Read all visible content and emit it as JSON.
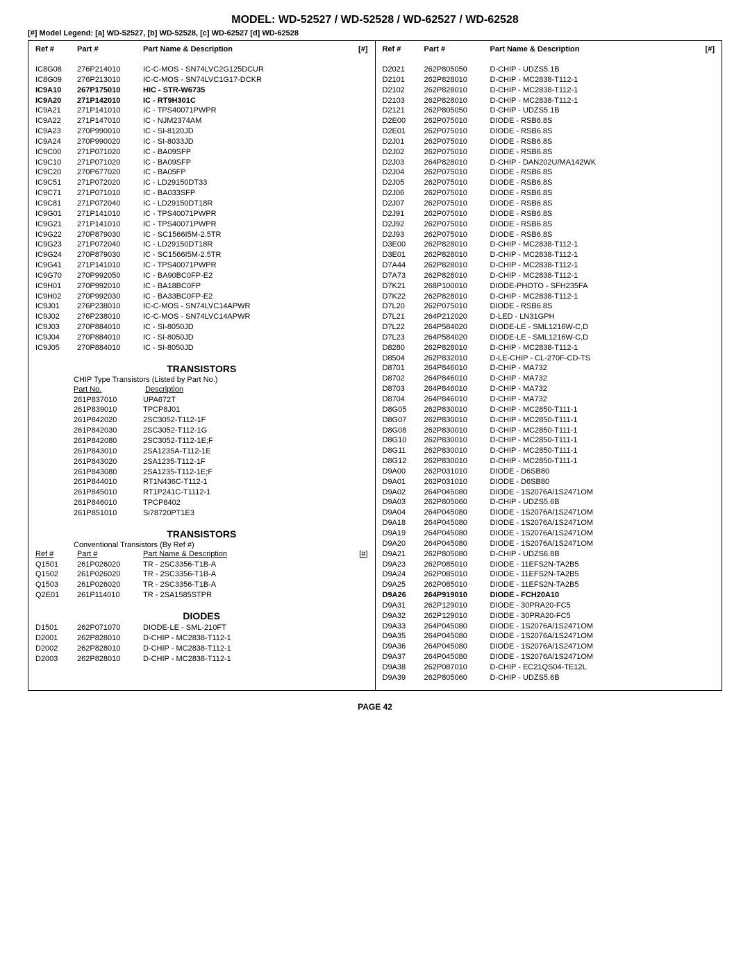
{
  "title": "MODEL: WD-52527 / WD-52528 / WD-62527 / WD-62528",
  "legend": "[#] Model Legend: [a]  WD-52527,  [b]  WD-52528,  [c]  WD-62527  [d]  WD-62528",
  "headers": {
    "ref": "Ref #",
    "part": "Part #",
    "desc": "Part Name & Description",
    "hash": "[#]"
  },
  "col1_rows": [
    {
      "ref": "IC8G08",
      "part": "276P214010",
      "desc": "IC-C-MOS -  SN74LVC2G125DCUR"
    },
    {
      "ref": "IC8G09",
      "part": "276P213010",
      "desc": "IC-C-MOS -  SN74LVC1G17-DCKR"
    },
    {
      "ref": "IC9A10",
      "part": "267P175010",
      "desc": "HIC -  STR-W6735",
      "bold": true
    },
    {
      "ref": "IC9A20",
      "part": "271P142010",
      "desc": "IC -   RT9H301C",
      "bold": true
    },
    {
      "ref": "IC9A21",
      "part": "271P141010",
      "desc": "IC - TPS40071PWPR"
    },
    {
      "ref": "IC9A22",
      "part": "271P147010",
      "desc": "IC - NJM2374AM"
    },
    {
      "ref": "IC9A23",
      "part": "270P990010",
      "desc": "IC -  SI-8120JD"
    },
    {
      "ref": "IC9A24",
      "part": "270P990020",
      "desc": "IC -  SI-8033JD"
    },
    {
      "ref": "IC9C00",
      "part": "271P071020",
      "desc": "IC - BA09SFP"
    },
    {
      "ref": "IC9C10",
      "part": "271P071020",
      "desc": "IC - BA09SFP"
    },
    {
      "ref": "IC9C20",
      "part": "270P677020",
      "desc": "IC - BA05FP"
    },
    {
      "ref": "IC9C51",
      "part": "271P072020",
      "desc": "IC - LD29150DT33"
    },
    {
      "ref": "IC9C71",
      "part": "271P071010",
      "desc": "IC - BA033SFP"
    },
    {
      "ref": "IC9C81",
      "part": "271P072040",
      "desc": "IC - LD29150DT18R"
    },
    {
      "ref": "IC9G01",
      "part": "271P141010",
      "desc": "IC - TPS40071PWPR"
    },
    {
      "ref": "IC9G21",
      "part": "271P141010",
      "desc": "IC - TPS40071PWPR"
    },
    {
      "ref": "IC9G22",
      "part": "270P879030",
      "desc": "IC - SC1566I5M-2.5TR"
    },
    {
      "ref": "IC9G23",
      "part": "271P072040",
      "desc": "IC - LD29150DT18R"
    },
    {
      "ref": "IC9G24",
      "part": "270P879030",
      "desc": "IC - SC1566I5M-2.5TR"
    },
    {
      "ref": "IC9G41",
      "part": "271P141010",
      "desc": "IC - TPS40071PWPR"
    },
    {
      "ref": "IC9G70",
      "part": "270P992050",
      "desc": "IC -  BA90BC0FP-E2"
    },
    {
      "ref": "IC9H01",
      "part": "270P992010",
      "desc": "IC - BA18BC0FP"
    },
    {
      "ref": "IC9H02",
      "part": "270P992030",
      "desc": "IC -  BA33BC0FP-E2"
    },
    {
      "ref": "IC9J01",
      "part": "276P238010",
      "desc": "IC-C-MOS -  SN74LVC14APWR"
    },
    {
      "ref": "IC9J02",
      "part": "276P238010",
      "desc": "IC-C-MOS -  SN74LVC14APWR"
    },
    {
      "ref": "IC9J03",
      "part": "270P884010",
      "desc": "IC -  SI-8050JD"
    },
    {
      "ref": "IC9J04",
      "part": "270P884010",
      "desc": "IC -  SI-8050JD"
    },
    {
      "ref": "IC9J05",
      "part": "270P884010",
      "desc": "IC -  SI-8050JD"
    }
  ],
  "trans1_title": "TRANSISTORS",
  "trans1_sub": "CHIP Type Transistors (Listed by Part No.)",
  "trans1_head_part": "Part No.",
  "trans1_head_desc": "Description",
  "trans1_rows": [
    {
      "part": "261P837010",
      "desc": "UPA672T"
    },
    {
      "part": "261P839010",
      "desc": "TPCP8J01"
    },
    {
      "part": "261P842020",
      "desc": "2SC3052-T112-1F"
    },
    {
      "part": "261P842030",
      "desc": "2SC3052-T112-1G"
    },
    {
      "part": "261P842080",
      "desc": "2SC3052-T112-1E;F"
    },
    {
      "part": "261P843010",
      "desc": "2SA1235A-T112-1E"
    },
    {
      "part": "261P843020",
      "desc": "2SA1235-T112-1F"
    },
    {
      "part": "261P843080",
      "desc": "2SA1235-T112-1E;F"
    },
    {
      "part": "261P844010",
      "desc": "RT1N436C-T112-1"
    },
    {
      "part": "261P845010",
      "desc": "RT1P241C-T1112-1"
    },
    {
      "part": "261P846010",
      "desc": "TPCP8402"
    },
    {
      "part": "261P851010",
      "desc": "Si78720PT1E3"
    }
  ],
  "trans2_title": "TRANSISTORS",
  "trans2_sub": "Conventional Transistors (By Ref #)",
  "trans2_head_ref": "Ref #",
  "trans2_head_part": "Part #",
  "trans2_head_desc": "Part Name & Description",
  "trans2_head_hash": "[#]",
  "trans2_rows": [
    {
      "ref": "Q1501",
      "part": "261P026020",
      "desc": "TR -  2SC3356-T1B-A"
    },
    {
      "ref": "Q1502",
      "part": "261P026020",
      "desc": "TR -  2SC3356-T1B-A"
    },
    {
      "ref": "Q1503",
      "part": "261P026020",
      "desc": "TR -  2SC3356-T1B-A"
    },
    {
      "ref": "Q2E01",
      "part": "261P114010",
      "desc": "TR - 2SA1585STPR"
    }
  ],
  "diodes_title": "DIODES",
  "diodes_rows": [
    {
      "ref": "D1501",
      "part": "262P071070",
      "desc": "DIODE-LE -  SML-210FT"
    },
    {
      "ref": "D2001",
      "part": "262P828010",
      "desc": "D-CHIP -  MC2838-T112-1"
    },
    {
      "ref": "D2002",
      "part": "262P828010",
      "desc": "D-CHIP -  MC2838-T112-1"
    },
    {
      "ref": "D2003",
      "part": "262P828010",
      "desc": "D-CHIP -  MC2838-T112-1"
    }
  ],
  "col2_rows": [
    {
      "ref": "D2021",
      "part": "262P805050",
      "desc": "D-CHIP -  UDZS5.1B"
    },
    {
      "ref": "D2101",
      "part": "262P828010",
      "desc": "D-CHIP -  MC2838-T112-1"
    },
    {
      "ref": "D2102",
      "part": "262P828010",
      "desc": "D-CHIP -  MC2838-T112-1"
    },
    {
      "ref": "D2103",
      "part": "262P828010",
      "desc": "D-CHIP -  MC2838-T112-1"
    },
    {
      "ref": "D2121",
      "part": "262P805050",
      "desc": "D-CHIP -  UDZS5.1B"
    },
    {
      "ref": "D2E00",
      "part": "262P075010",
      "desc": "DIODE - RSB6.8S"
    },
    {
      "ref": "D2E01",
      "part": "262P075010",
      "desc": "DIODE - RSB6.8S"
    },
    {
      "ref": "D2J01",
      "part": "262P075010",
      "desc": "DIODE - RSB6.8S"
    },
    {
      "ref": "D2J02",
      "part": "262P075010",
      "desc": "DIODE - RSB6.8S"
    },
    {
      "ref": "D2J03",
      "part": "264P828010",
      "desc": "D-CHIP - DAN202U/MA142WK"
    },
    {
      "ref": "D2J04",
      "part": "262P075010",
      "desc": "DIODE - RSB6.8S"
    },
    {
      "ref": "D2J05",
      "part": "262P075010",
      "desc": "DIODE - RSB6.8S"
    },
    {
      "ref": "D2J06",
      "part": "262P075010",
      "desc": "DIODE - RSB6.8S"
    },
    {
      "ref": "D2J07",
      "part": "262P075010",
      "desc": "DIODE - RSB6.8S"
    },
    {
      "ref": "D2J91",
      "part": "262P075010",
      "desc": "DIODE - RSB6.8S"
    },
    {
      "ref": "D2J92",
      "part": "262P075010",
      "desc": "DIODE - RSB6.8S"
    },
    {
      "ref": "D2J93",
      "part": "262P075010",
      "desc": "DIODE - RSB6.8S"
    },
    {
      "ref": "D3E00",
      "part": "262P828010",
      "desc": "D-CHIP -  MC2838-T112-1"
    },
    {
      "ref": "D3E01",
      "part": "262P828010",
      "desc": "D-CHIP -  MC2838-T112-1"
    },
    {
      "ref": "D7A44",
      "part": "262P828010",
      "desc": "D-CHIP -  MC2838-T112-1"
    },
    {
      "ref": "D7A73",
      "part": "262P828010",
      "desc": "D-CHIP -  MC2838-T112-1"
    },
    {
      "ref": "D7K21",
      "part": "268P100010",
      "desc": "DIODE-PHOTO - SFH235FA"
    },
    {
      "ref": "D7K22",
      "part": "262P828010",
      "desc": "D-CHIP -  MC2838-T112-1"
    },
    {
      "ref": "D7L20",
      "part": "262P075010",
      "desc": "DIODE - RSB6.8S"
    },
    {
      "ref": "D7L21",
      "part": "264P212020",
      "desc": "D-LED - LN31GPH"
    },
    {
      "ref": "D7L22",
      "part": "264P584020",
      "desc": "DIODE-LE - SML1216W-C,D"
    },
    {
      "ref": "D7L23",
      "part": "264P584020",
      "desc": "DIODE-LE - SML1216W-C,D"
    },
    {
      "ref": "D8280",
      "part": "262P828010",
      "desc": "D-CHIP -  MC2838-T112-1"
    },
    {
      "ref": "D8504",
      "part": "262P832010",
      "desc": "D-LE-CHIP -  CL-270F-CD-TS"
    },
    {
      "ref": "D8701",
      "part": "264P846010",
      "desc": "D-CHIP - MA732"
    },
    {
      "ref": "D8702",
      "part": "264P846010",
      "desc": "D-CHIP - MA732"
    },
    {
      "ref": "D8703",
      "part": "264P846010",
      "desc": "D-CHIP - MA732"
    },
    {
      "ref": "D8704",
      "part": "264P846010",
      "desc": "D-CHIP - MA732"
    },
    {
      "ref": "D8G05",
      "part": "262P830010",
      "desc": "D-CHIP - MC2850-T111-1"
    },
    {
      "ref": "D8G07",
      "part": "262P830010",
      "desc": "D-CHIP - MC2850-T111-1"
    },
    {
      "ref": "D8G08",
      "part": "262P830010",
      "desc": "D-CHIP - MC2850-T111-1"
    },
    {
      "ref": "D8G10",
      "part": "262P830010",
      "desc": "D-CHIP - MC2850-T111-1"
    },
    {
      "ref": "D8G11",
      "part": "262P830010",
      "desc": "D-CHIP - MC2850-T111-1"
    },
    {
      "ref": "D8G12",
      "part": "262P830010",
      "desc": "D-CHIP - MC2850-T111-1"
    },
    {
      "ref": "D9A00",
      "part": "262P031010",
      "desc": "DIODE - D6SB80"
    },
    {
      "ref": "D9A01",
      "part": "262P031010",
      "desc": "DIODE - D6SB80"
    },
    {
      "ref": "D9A02",
      "part": "264P045080",
      "desc": "DIODE - 1S2076A/1S2471OM"
    },
    {
      "ref": "D9A03",
      "part": "262P805060",
      "desc": "D-CHIP -  UDZS5.6B"
    },
    {
      "ref": "D9A04",
      "part": "264P045080",
      "desc": "DIODE - 1S2076A/1S2471OM"
    },
    {
      "ref": "D9A18",
      "part": "264P045080",
      "desc": "DIODE - 1S2076A/1S2471OM"
    },
    {
      "ref": "D9A19",
      "part": "264P045080",
      "desc": "DIODE - 1S2076A/1S2471OM"
    },
    {
      "ref": "D9A20",
      "part": "264P045080",
      "desc": "DIODE - 1S2076A/1S2471OM"
    },
    {
      "ref": "D9A21",
      "part": "262P805080",
      "desc": "D-CHIP -  UDZS6.8B"
    },
    {
      "ref": "D9A23",
      "part": "262P085010",
      "desc": "DIODE - 11EFS2N-TA2B5"
    },
    {
      "ref": "D9A24",
      "part": "262P085010",
      "desc": "DIODE - 11EFS2N-TA2B5"
    },
    {
      "ref": "D9A25",
      "part": "262P085010",
      "desc": "DIODE - 11EFS2N-TA2B5"
    },
    {
      "ref": "D9A26",
      "part": "264P919010",
      "desc": "DIODE -   FCH20A10",
      "bold": true
    },
    {
      "ref": "D9A31",
      "part": "262P129010",
      "desc": "DIODE - 30PRA20-FC5"
    },
    {
      "ref": "D9A32",
      "part": "262P129010",
      "desc": "DIODE - 30PRA20-FC5"
    },
    {
      "ref": "D9A33",
      "part": "264P045080",
      "desc": "DIODE - 1S2076A/1S2471OM"
    },
    {
      "ref": "D9A35",
      "part": "264P045080",
      "desc": "DIODE - 1S2076A/1S2471OM"
    },
    {
      "ref": "D9A36",
      "part": "264P045080",
      "desc": "DIODE - 1S2076A/1S2471OM"
    },
    {
      "ref": "D9A37",
      "part": "264P045080",
      "desc": "DIODE - 1S2076A/1S2471OM"
    },
    {
      "ref": "D9A38",
      "part": "262P087010",
      "desc": "D-CHIP - EC21QS04-TE12L"
    },
    {
      "ref": "D9A39",
      "part": "262P805060",
      "desc": "D-CHIP -  UDZS5.6B"
    }
  ],
  "page_footer": "PAGE 42"
}
